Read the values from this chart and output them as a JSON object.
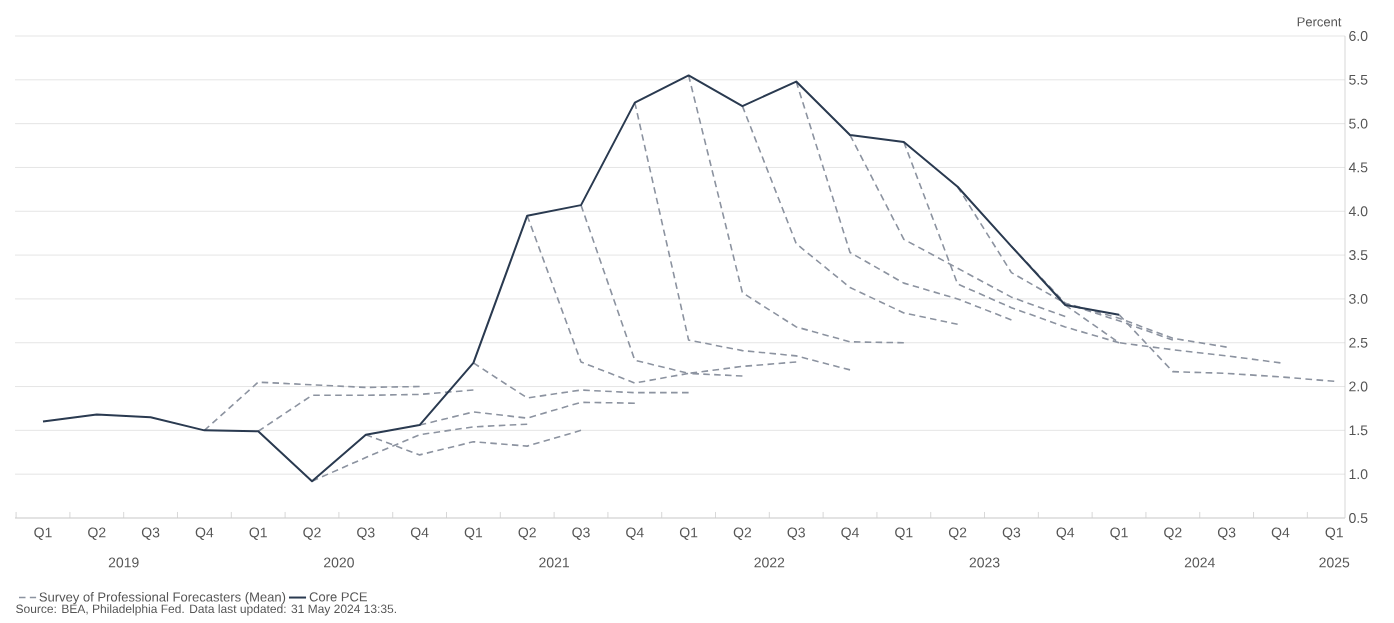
{
  "chart_data": {
    "type": "line",
    "ylabel": "Percent",
    "categories": [
      "Q1",
      "Q2",
      "Q3",
      "Q4",
      "Q1",
      "Q2",
      "Q3",
      "Q4",
      "Q1",
      "Q2",
      "Q3",
      "Q4",
      "Q1",
      "Q2",
      "Q3",
      "Q4",
      "Q1",
      "Q2",
      "Q3",
      "Q4",
      "Q1",
      "Q2",
      "Q3",
      "Q4",
      "Q1"
    ],
    "annotations": [
      "2019",
      "2020",
      "2021",
      "2022",
      "2023",
      "2024",
      "2025",
      "Source: BEA, Philadelphia Fed. Data last updated: 31 May 2024 13:35."
    ],
    "ylim": [
      0.5,
      6.0
    ],
    "yticks": [
      0.5,
      {
        "value": 1,
        "label": "1.0"
      },
      1.5,
      {
        "value": 2,
        "label": "2.0"
      },
      2.5,
      {
        "value": 3,
        "label": "3.0"
      },
      3.5,
      {
        "value": 4,
        "label": "4.0"
      },
      4.5,
      {
        "value": 5,
        "label": "5.0"
      },
      5.5,
      {
        "value": 6,
        "label": "6.0"
      }
    ],
    "grid": "y",
    "legend": "bottom left",
    "series": [
      {
        "name": "Survey of Professional Forecasters (Mean)",
        "color": "#8c93a0",
        "line_style": "dashed",
        "values": [
          null,
          null,
          null,
          1.5,
          2.05,
          2.02,
          1.99,
          2.0,
          null,
          null,
          null,
          null,
          null,
          null,
          null,
          null,
          null,
          null,
          null,
          null,
          null,
          null,
          null,
          null,
          null
        ]
      },
      {
        "color": "#8c93a0",
        "line_style": "dashed",
        "values": [
          null,
          null,
          null,
          null,
          1.49,
          1.9,
          1.9,
          1.91,
          1.96,
          null,
          null,
          null,
          null,
          null,
          null,
          null,
          null,
          null,
          null,
          null,
          null,
          null,
          null,
          null,
          null
        ]
      },
      {
        "color": "#8c93a0",
        "line_style": "dashed",
        "values": [
          null,
          null,
          null,
          null,
          null,
          0.92,
          1.19,
          1.45,
          1.54,
          1.57,
          null,
          null,
          null,
          null,
          null,
          null,
          null,
          null,
          null,
          null,
          null,
          null,
          null,
          null,
          null
        ]
      },
      {
        "color": "#8c93a0",
        "line_style": "dashed",
        "values": [
          null,
          null,
          null,
          null,
          null,
          null,
          1.45,
          1.22,
          1.37,
          1.32,
          1.5,
          null,
          null,
          null,
          null,
          null,
          null,
          null,
          null,
          null,
          null,
          null,
          null,
          null,
          null
        ]
      },
      {
        "color": "#8c93a0",
        "line_style": "dashed",
        "values": [
          null,
          null,
          null,
          null,
          null,
          null,
          null,
          1.56,
          1.71,
          1.64,
          1.82,
          1.81,
          null,
          null,
          null,
          null,
          null,
          null,
          null,
          null,
          null,
          null,
          null,
          null,
          null
        ]
      },
      {
        "color": "#8c93a0",
        "line_style": "dashed",
        "values": [
          null,
          null,
          null,
          null,
          null,
          null,
          null,
          null,
          2.27,
          1.87,
          1.96,
          1.93,
          1.93,
          null,
          null,
          null,
          null,
          null,
          null,
          null,
          null,
          null,
          null,
          null,
          null
        ]
      },
      {
        "color": "#8c93a0",
        "line_style": "dashed",
        "values": [
          null,
          null,
          null,
          null,
          null,
          null,
          null,
          null,
          null,
          3.95,
          2.28,
          2.04,
          2.15,
          2.12,
          null,
          null,
          null,
          null,
          null,
          null,
          null,
          null,
          null,
          null,
          null
        ]
      },
      {
        "color": "#8c93a0",
        "line_style": "dashed",
        "values": [
          null,
          null,
          null,
          null,
          null,
          null,
          null,
          null,
          null,
          null,
          4.07,
          2.3,
          2.15,
          2.23,
          2.28,
          null,
          null,
          null,
          null,
          null,
          null,
          null,
          null,
          null,
          null
        ]
      },
      {
        "color": "#8c93a0",
        "line_style": "dashed",
        "values": [
          null,
          null,
          null,
          null,
          null,
          null,
          null,
          null,
          null,
          null,
          null,
          5.24,
          2.53,
          2.41,
          2.35,
          2.19,
          null,
          null,
          null,
          null,
          null,
          null,
          null,
          null,
          null
        ]
      },
      {
        "color": "#8c93a0",
        "line_style": "dashed",
        "values": [
          null,
          null,
          null,
          null,
          null,
          null,
          null,
          null,
          null,
          null,
          null,
          null,
          5.55,
          3.07,
          2.68,
          2.51,
          2.5,
          null,
          null,
          null,
          null,
          null,
          null,
          null,
          null
        ]
      },
      {
        "color": "#8c93a0",
        "line_style": "dashed",
        "values": [
          null,
          null,
          null,
          null,
          null,
          null,
          null,
          null,
          null,
          null,
          null,
          null,
          null,
          5.2,
          3.63,
          3.13,
          2.84,
          2.71,
          null,
          null,
          null,
          null,
          null,
          null,
          null
        ]
      },
      {
        "color": "#8c93a0",
        "line_style": "dashed",
        "values": [
          null,
          null,
          null,
          null,
          null,
          null,
          null,
          null,
          null,
          null,
          null,
          null,
          null,
          null,
          5.48,
          3.53,
          3.18,
          3.0,
          2.76,
          null,
          null,
          null,
          null,
          null,
          null
        ]
      },
      {
        "color": "#8c93a0",
        "line_style": "dashed",
        "values": [
          null,
          null,
          null,
          null,
          null,
          null,
          null,
          null,
          null,
          null,
          null,
          null,
          null,
          null,
          null,
          4.87,
          3.68,
          3.35,
          3.02,
          2.8,
          null,
          null,
          null,
          null,
          null
        ]
      },
      {
        "color": "#8c93a0",
        "line_style": "dashed",
        "values": [
          null,
          null,
          null,
          null,
          null,
          null,
          null,
          null,
          null,
          null,
          null,
          null,
          null,
          null,
          null,
          null,
          4.79,
          3.17,
          2.9,
          2.68,
          2.5,
          null,
          null,
          null,
          null
        ]
      },
      {
        "color": "#8c93a0",
        "line_style": "dashed",
        "values": [
          null,
          null,
          null,
          null,
          null,
          null,
          null,
          null,
          null,
          null,
          null,
          null,
          null,
          null,
          null,
          null,
          null,
          4.28,
          3.3,
          2.95,
          2.75,
          2.53,
          null,
          null,
          null
        ]
      },
      {
        "color": "#8c93a0",
        "line_style": "dashed",
        "values": [
          null,
          null,
          null,
          null,
          null,
          null,
          null,
          null,
          null,
          null,
          null,
          null,
          null,
          null,
          null,
          null,
          null,
          null,
          3.6,
          2.95,
          2.78,
          2.55,
          2.45,
          null,
          null
        ]
      },
      {
        "color": "#8c93a0",
        "line_style": "dashed",
        "values": [
          null,
          null,
          null,
          null,
          null,
          null,
          null,
          null,
          null,
          null,
          null,
          null,
          null,
          null,
          null,
          null,
          null,
          null,
          null,
          2.93,
          2.5,
          2.42,
          2.35,
          2.27,
          null
        ]
      },
      {
        "color": "#8c93a0",
        "line_style": "dashed",
        "values": [
          null,
          null,
          null,
          null,
          null,
          null,
          null,
          null,
          null,
          null,
          null,
          null,
          null,
          null,
          null,
          null,
          null,
          null,
          null,
          null,
          2.82,
          2.17,
          2.15,
          2.11,
          2.06
        ]
      },
      {
        "name": "Core PCE",
        "color": "#2a3a50",
        "line_style": "solid",
        "values": [
          1.6,
          1.68,
          1.65,
          1.5,
          1.49,
          0.92,
          1.45,
          1.56,
          2.27,
          3.95,
          4.07,
          5.24,
          5.55,
          5.2,
          5.48,
          4.87,
          4.79,
          4.28,
          3.6,
          2.93,
          2.82,
          null,
          null,
          null,
          null
        ]
      }
    ]
  }
}
